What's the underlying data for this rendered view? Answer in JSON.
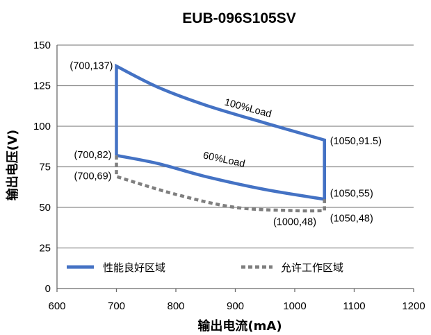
{
  "chart_data": {
    "type": "line",
    "title": "EUB-096S105SV",
    "xlabel": "输出电流(mA)",
    "ylabel": "输出电压(V)",
    "xlim": [
      600,
      1200
    ],
    "ylim": [
      0,
      150
    ],
    "xticks": [
      "600",
      "700",
      "800",
      "900",
      "1000",
      "1100",
      "1200"
    ],
    "yticks": [
      "0",
      "25",
      "50",
      "75",
      "100",
      "125",
      "150"
    ],
    "grid": "horizontal",
    "legend_position": "bottom",
    "series": [
      {
        "name": "性能良好区域",
        "style": "solid",
        "color": "#4472C4",
        "x": [
          700,
          700,
          770,
          850,
          950,
          1050,
          1050,
          950,
          850,
          770,
          700
        ],
        "y": [
          82,
          137,
          124,
          113,
          102,
          91.5,
          55,
          61,
          69,
          77,
          82
        ]
      },
      {
        "name": "允许工作区域",
        "style": "dashed",
        "color": "#7F7F7F",
        "x": [
          700,
          700,
          800,
          900,
          1000,
          1050,
          1050
        ],
        "y": [
          82,
          69,
          58,
          50,
          48,
          48,
          55
        ]
      }
    ],
    "annotations": [
      {
        "text": "(700,137)",
        "x": 700,
        "y": 137
      },
      {
        "text": "(700,82)",
        "x": 700,
        "y": 82
      },
      {
        "text": "(700,69)",
        "x": 700,
        "y": 69
      },
      {
        "text": "(1050,91.5)",
        "x": 1050,
        "y": 91.5
      },
      {
        "text": "(1050,55)",
        "x": 1050,
        "y": 55
      },
      {
        "text": "(1050,48)",
        "x": 1050,
        "y": 48
      },
      {
        "text": "(1000,48)",
        "x": 1000,
        "y": 48
      },
      {
        "text": "100%Load",
        "x": 920,
        "y": 108
      },
      {
        "text": "60%Load",
        "x": 880,
        "y": 75
      }
    ]
  }
}
